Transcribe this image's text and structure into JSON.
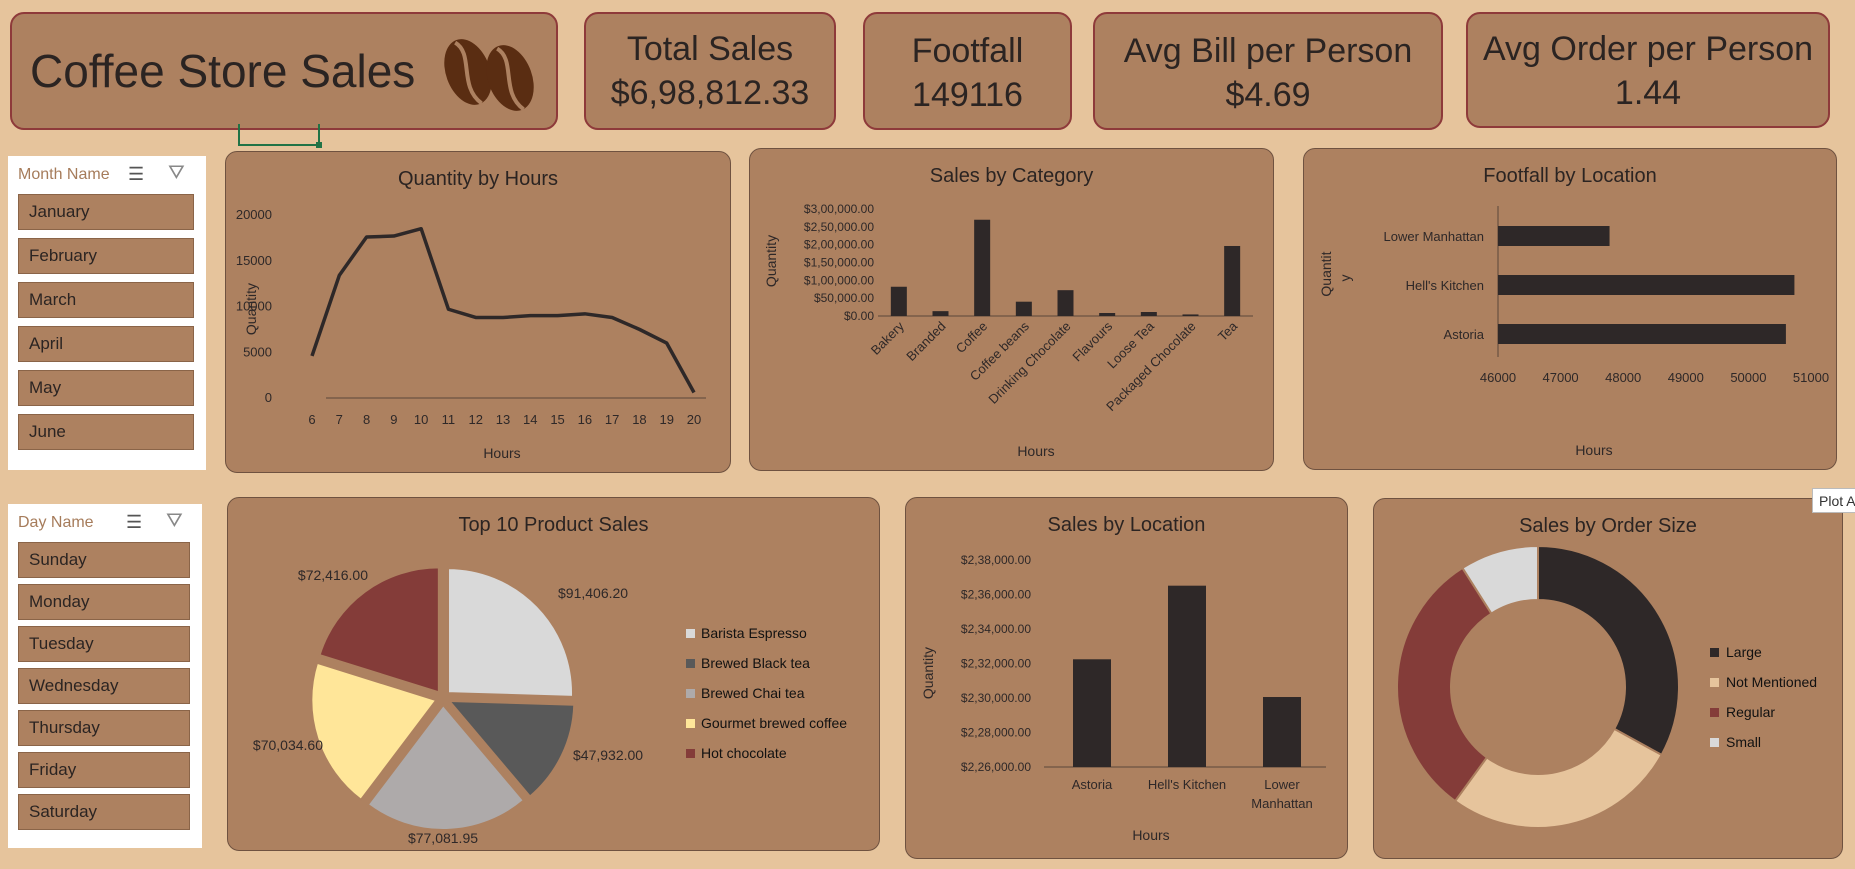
{
  "header": {
    "title": "Coffee Store Sales",
    "logo_icon": "coffee-beans-icon"
  },
  "kpis": [
    {
      "title": "Total Sales",
      "value": "$6,98,812.33"
    },
    {
      "title": "Footfall",
      "value": "149116"
    },
    {
      "title": "Avg Bill per Person",
      "value": "$4.69"
    },
    {
      "title": "Avg Order per Person",
      "value": "1.44"
    }
  ],
  "slicers": {
    "month": {
      "title": "Month Name",
      "items": [
        "January",
        "February",
        "March",
        "April",
        "May",
        "June"
      ]
    },
    "day": {
      "title": "Day Name",
      "items": [
        "Sunday",
        "Monday",
        "Tuesday",
        "Wednesday",
        "Thursday",
        "Friday",
        "Saturday"
      ]
    }
  },
  "tooltip": "Plot A",
  "colors": {
    "background": "#e6c49c",
    "panel": "#ad8160",
    "dark": "#2e2828",
    "border": "#8e3a3a"
  },
  "chart_data": [
    {
      "id": "qty_hours",
      "type": "line",
      "title": "Quantity by Hours",
      "xlabel": "Hours",
      "ylabel": "Quantity",
      "x": [
        6,
        7,
        8,
        9,
        10,
        11,
        12,
        13,
        14,
        15,
        16,
        17,
        18,
        19,
        20
      ],
      "values": [
        4600,
        13400,
        17600,
        17700,
        18500,
        9700,
        8800,
        8800,
        9000,
        9000,
        9200,
        8800,
        7500,
        6000,
        600
      ],
      "yticks": [
        "0",
        "5000",
        "10000",
        "15000",
        "20000"
      ],
      "ylim": [
        0,
        20000
      ]
    },
    {
      "id": "sales_category",
      "type": "bar",
      "title": "Sales by Category",
      "xlabel": "Hours",
      "ylabel": "Quantity",
      "categories": [
        "Bakery",
        "Branded",
        "Coffee",
        "Coffee beans",
        "Drinking Chocolate",
        "Flavours",
        "Loose Tea",
        "Packaged Chocolate",
        "Tea"
      ],
      "values": [
        82000,
        13600,
        269900,
        40100,
        72400,
        8400,
        11200,
        4400,
        196300
      ],
      "yticks": [
        "$0.00",
        "$50,000.00",
        "$1,00,000.00",
        "$1,50,000.00",
        "$2,00,000.00",
        "$2,50,000.00",
        "$3,00,000.00"
      ],
      "ylim": [
        0,
        300000
      ]
    },
    {
      "id": "footfall_location",
      "type": "bar",
      "orientation": "horizontal",
      "title": "Footfall by Location",
      "xlabel": "Hours",
      "ylabel": "Quantit y",
      "categories": [
        "Lower Manhattan",
        "Hell's Kitchen",
        "Astoria"
      ],
      "values": [
        47782,
        50735,
        50599
      ],
      "xticks": [
        "46000",
        "47000",
        "48000",
        "49000",
        "50000",
        "51000"
      ],
      "xlim": [
        46000,
        51000
      ]
    },
    {
      "id": "top10_products",
      "type": "pie",
      "title": "Top 10 Product Sales",
      "labels": [
        "Barista Espresso",
        "Brewed Black tea",
        "Brewed Chai tea",
        "Gourmet brewed coffee",
        "Hot chocolate"
      ],
      "values": [
        91406.2,
        47932.0,
        77081.95,
        70034.6,
        72416.0
      ],
      "value_labels": [
        "$91,406.20",
        "$47,932.00",
        "$77,081.95",
        "$70,034.60",
        "$72,416.00"
      ],
      "colors": [
        "#d9d9d9",
        "#595959",
        "#aeaaaa",
        "#ffe699",
        "#843c39"
      ],
      "legend": "right"
    },
    {
      "id": "sales_location",
      "type": "bar",
      "title": "Sales by Location",
      "xlabel": "Hours",
      "ylabel": "Quantity",
      "categories": [
        "Astoria",
        "Hell's Kitchen",
        "Lower Manhattan"
      ],
      "category_lines": [
        [
          "Astoria"
        ],
        [
          "Hell's Kitchen"
        ],
        [
          "Lower",
          "Manhattan"
        ]
      ],
      "values": [
        232244,
        236511,
        230057
      ],
      "yticks": [
        "$2,26,000.00",
        "$2,28,000.00",
        "$2,30,000.00",
        "$2,32,000.00",
        "$2,34,000.00",
        "$2,36,000.00",
        "$2,38,000.00"
      ],
      "ylim": [
        226000,
        238000
      ]
    },
    {
      "id": "order_size",
      "type": "pie",
      "donut": true,
      "title": "Sales by Order Size",
      "labels": [
        "Large",
        "Not Mentioned",
        "Regular",
        "Small"
      ],
      "values": [
        33,
        27,
        31,
        9
      ],
      "colors": [
        "#2e2828",
        "#e6c49c",
        "#843c39",
        "#d9d9d9"
      ],
      "legend": "right"
    }
  ]
}
